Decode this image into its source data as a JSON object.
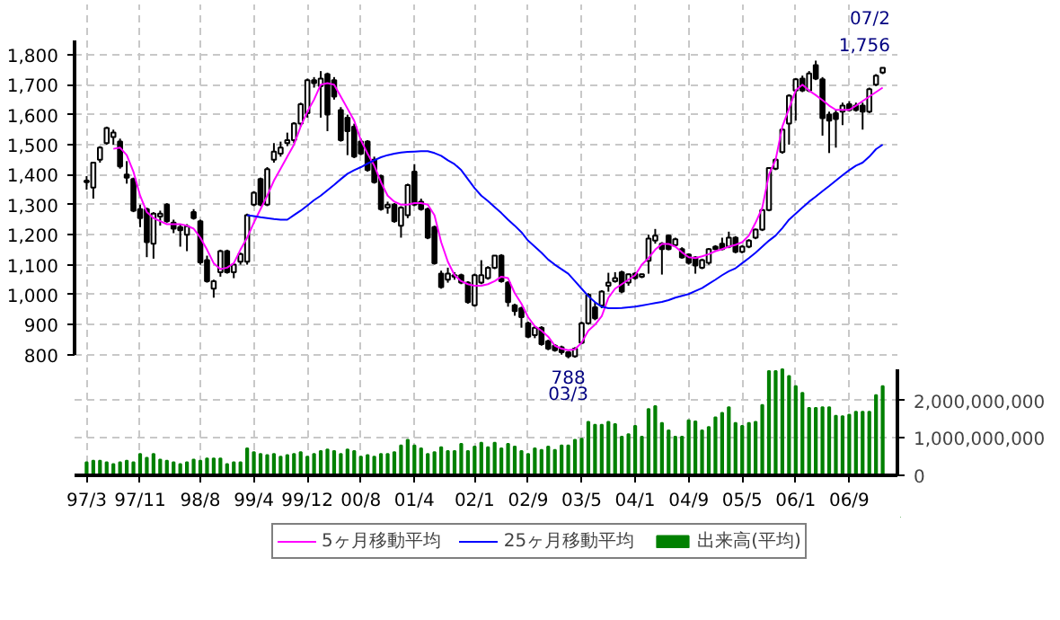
{
  "chart_data": {
    "type": "candlestick",
    "categories": [
      "97/3",
      null,
      null,
      null,
      null,
      null,
      null,
      null,
      "97/11",
      null,
      null,
      null,
      null,
      null,
      null,
      null,
      null,
      "98/8",
      null,
      null,
      null,
      null,
      null,
      null,
      null,
      "99/4",
      null,
      null,
      null,
      null,
      null,
      null,
      null,
      "99/12",
      null,
      null,
      null,
      null,
      null,
      null,
      null,
      "00/8",
      null,
      null,
      null,
      null,
      null,
      null,
      null,
      "01/4",
      null,
      null,
      null,
      null,
      null,
      null,
      null,
      null,
      "02/1",
      null,
      null,
      null,
      null,
      null,
      null,
      null,
      "02/9",
      null,
      null,
      null,
      null,
      null,
      null,
      null,
      "03/5",
      null,
      null,
      null,
      null,
      null,
      null,
      null,
      "04/1",
      null,
      null,
      null,
      null,
      null,
      null,
      null,
      "04/9",
      null,
      null,
      null,
      null,
      null,
      null,
      null,
      "05/5",
      null,
      null,
      null,
      null,
      null,
      null,
      null,
      "06/1",
      null,
      null,
      null,
      null,
      null,
      null,
      null,
      "06/9",
      null,
      null,
      null,
      null,
      null
    ],
    "ohlc": [
      [
        1375,
        1395,
        1350,
        1380
      ],
      [
        1357,
        1440,
        1320,
        1440
      ],
      [
        1450,
        1495,
        1440,
        1490
      ],
      [
        1505,
        1560,
        1500,
        1555
      ],
      [
        1525,
        1550,
        1500,
        1540
      ],
      [
        1510,
        1520,
        1420,
        1427
      ],
      [
        1400,
        1445,
        1370,
        1390
      ],
      [
        1385,
        1390,
        1275,
        1280
      ],
      [
        1285,
        1300,
        1225,
        1255
      ],
      [
        1285,
        1290,
        1125,
        1175
      ],
      [
        1170,
        1275,
        1120,
        1270
      ],
      [
        1260,
        1280,
        1230,
        1270
      ],
      [
        1300,
        1305,
        1240,
        1245
      ],
      [
        1240,
        1250,
        1205,
        1220
      ],
      [
        1225,
        1235,
        1160,
        1215
      ],
      [
        1200,
        1235,
        1145,
        1228
      ],
      [
        1275,
        1285,
        1250,
        1255
      ],
      [
        1245,
        1250,
        1100,
        1108
      ],
      [
        1115,
        1130,
        1040,
        1045
      ],
      [
        1020,
        1050,
        990,
        1045
      ],
      [
        1075,
        1150,
        1060,
        1145
      ],
      [
        1145,
        1150,
        1070,
        1075
      ],
      [
        1075,
        1105,
        1055,
        1100
      ],
      [
        1110,
        1140,
        1100,
        1135
      ],
      [
        1110,
        1270,
        1100,
        1265
      ],
      [
        1300,
        1345,
        1295,
        1340
      ],
      [
        1385,
        1390,
        1295,
        1300
      ],
      [
        1300,
        1425,
        1295,
        1418
      ],
      [
        1450,
        1505,
        1440,
        1477
      ],
      [
        1470,
        1510,
        1460,
        1490
      ],
      [
        1505,
        1540,
        1495,
        1515
      ],
      [
        1515,
        1575,
        1505,
        1570
      ],
      [
        1570,
        1640,
        1560,
        1635
      ],
      [
        1605,
        1720,
        1590,
        1715
      ],
      [
        1715,
        1725,
        1690,
        1705
      ],
      [
        1695,
        1745,
        1590,
        1720
      ],
      [
        1735,
        1740,
        1545,
        1600
      ],
      [
        1715,
        1725,
        1650,
        1660
      ],
      [
        1615,
        1625,
        1510,
        1515
      ],
      [
        1590,
        1600,
        1465,
        1545
      ],
      [
        1560,
        1570,
        1455,
        1460
      ],
      [
        1510,
        1520,
        1465,
        1470
      ],
      [
        1510,
        1515,
        1410,
        1415
      ],
      [
        1450,
        1460,
        1370,
        1375
      ],
      [
        1395,
        1400,
        1280,
        1285
      ],
      [
        1290,
        1310,
        1270,
        1300
      ],
      [
        1300,
        1305,
        1240,
        1245
      ],
      [
        1230,
        1295,
        1190,
        1290
      ],
      [
        1265,
        1370,
        1255,
        1365
      ],
      [
        1410,
        1435,
        1295,
        1300
      ],
      [
        1310,
        1320,
        1280,
        1285
      ],
      [
        1285,
        1290,
        1185,
        1190
      ],
      [
        1225,
        1230,
        1100,
        1105
      ],
      [
        1070,
        1080,
        1020,
        1025
      ],
      [
        1050,
        1090,
        1040,
        1070
      ],
      [
        1060,
        1075,
        1050,
        1065
      ],
      [
        1065,
        1070,
        1035,
        1040
      ],
      [
        1040,
        1045,
        970,
        975
      ],
      [
        965,
        1070,
        960,
        1065
      ],
      [
        1040,
        1115,
        1035,
        1065
      ],
      [
        1055,
        1095,
        1050,
        1090
      ],
      [
        1090,
        1130,
        1085,
        1130
      ],
      [
        1130,
        1135,
        1040,
        1045
      ],
      [
        1040,
        1045,
        960,
        975
      ],
      [
        965,
        970,
        930,
        945
      ],
      [
        955,
        960,
        890,
        925
      ],
      [
        905,
        910,
        855,
        860
      ],
      [
        865,
        895,
        855,
        890
      ],
      [
        890,
        895,
        830,
        835
      ],
      [
        845,
        850,
        815,
        820
      ],
      [
        830,
        835,
        810,
        815
      ],
      [
        825,
        830,
        800,
        808
      ],
      [
        808,
        812,
        788,
        795
      ],
      [
        795,
        825,
        790,
        820
      ],
      [
        840,
        910,
        835,
        905
      ],
      [
        905,
        1005,
        900,
        1000
      ],
      [
        958,
        975,
        915,
        921
      ],
      [
        964,
        1015,
        955,
        1010
      ],
      [
        1030,
        1073,
        1010,
        1040
      ],
      [
        1045,
        1075,
        1040,
        1055
      ],
      [
        1075,
        1080,
        1005,
        1010
      ],
      [
        1040,
        1070,
        1030,
        1068
      ],
      [
        1070,
        1075,
        1050,
        1055
      ],
      [
        1060,
        1070,
        1055,
        1068
      ],
      [
        1113,
        1200,
        1070,
        1187
      ],
      [
        1180,
        1219,
        1170,
        1197
      ],
      [
        1170,
        1175,
        1067,
        1152
      ],
      [
        1197,
        1200,
        1148,
        1152
      ],
      [
        1165,
        1190,
        1160,
        1185
      ],
      [
        1152,
        1158,
        1120,
        1124
      ],
      [
        1134,
        1138,
        1100,
        1106
      ],
      [
        1124,
        1128,
        1070,
        1097
      ],
      [
        1090,
        1120,
        1085,
        1115
      ],
      [
        1106,
        1155,
        1100,
        1152
      ],
      [
        1160,
        1165,
        1148,
        1152
      ],
      [
        1170,
        1190,
        1148,
        1152
      ],
      [
        1160,
        1210,
        1155,
        1190
      ],
      [
        1190,
        1195,
        1138,
        1143
      ],
      [
        1143,
        1165,
        1138,
        1160
      ],
      [
        1160,
        1185,
        1155,
        1180
      ],
      [
        1190,
        1220,
        1185,
        1217
      ],
      [
        1217,
        1285,
        1212,
        1282
      ],
      [
        1282,
        1425,
        1278,
        1422
      ],
      [
        1420,
        1455,
        1415,
        1450
      ],
      [
        1475,
        1555,
        1470,
        1550
      ],
      [
        1570,
        1668,
        1500,
        1663
      ],
      [
        1680,
        1722,
        1580,
        1718
      ],
      [
        1720,
        1730,
        1675,
        1680
      ],
      [
        1680,
        1745,
        1675,
        1737
      ],
      [
        1765,
        1780,
        1715,
        1720
      ],
      [
        1718,
        1725,
        1530,
        1588
      ],
      [
        1600,
        1610,
        1472,
        1580
      ],
      [
        1605,
        1615,
        1490,
        1585
      ],
      [
        1610,
        1640,
        1565,
        1630
      ],
      [
        1635,
        1645,
        1610,
        1615
      ],
      [
        1630,
        1640,
        1610,
        1615
      ],
      [
        1630,
        1640,
        1550,
        1610
      ],
      [
        1610,
        1690,
        1605,
        1685
      ],
      [
        1700,
        1735,
        1695,
        1730
      ],
      [
        1740,
        1756,
        1735,
        1756
      ]
    ],
    "series": [
      {
        "name": "5ヶ月移動平均",
        "type": "line",
        "color": "#ff00ff",
        "values": [
          null,
          null,
          null,
          null,
          1486,
          1490,
          1465,
          1410,
          1330,
          1275,
          1255,
          1245,
          1235,
          1235,
          1235,
          1230,
          1220,
          1190,
          1150,
          1105,
          1085,
          1090,
          1105,
          1150,
          1190,
          1240,
          1285,
          1330,
          1380,
          1420,
          1460,
          1500,
          1560,
          1610,
          1650,
          1700,
          1705,
          1700,
          1660,
          1620,
          1580,
          1515,
          1470,
          1430,
          1375,
          1330,
          1310,
          1300,
          1300,
          1305,
          1305,
          1300,
          1265,
          1175,
          1110,
          1065,
          1045,
          1035,
          1030,
          1030,
          1035,
          1045,
          1060,
          1055,
          1005,
          970,
          925,
          895,
          880,
          860,
          830,
          820,
          815,
          818,
          840,
          880,
          900,
          928,
          990,
          1020,
          1035,
          1050,
          1065,
          1100,
          1122,
          1150,
          1169,
          1169,
          1160,
          1141,
          1125,
          1122,
          1128,
          1135,
          1145,
          1152,
          1160,
          1166,
          1175,
          1197,
          1240,
          1290,
          1400,
          1450,
          1560,
          1620,
          1681,
          1700,
          1680,
          1665,
          1648,
          1630,
          1616,
          1616,
          1616,
          1630,
          1645,
          1660,
          1675,
          1690
        ]
      },
      {
        "name": "25ヶ月移動平均",
        "type": "line",
        "color": "#0000ff",
        "values": [
          null,
          null,
          null,
          null,
          null,
          null,
          null,
          null,
          null,
          null,
          null,
          null,
          null,
          null,
          null,
          null,
          null,
          null,
          null,
          null,
          null,
          null,
          null,
          null,
          1265,
          1262,
          1258,
          1255,
          1252,
          1250,
          1250,
          1265,
          1280,
          1297,
          1315,
          1330,
          1348,
          1366,
          1385,
          1403,
          1415,
          1425,
          1437,
          1448,
          1458,
          1465,
          1470,
          1474,
          1476,
          1477,
          1478,
          1478,
          1472,
          1463,
          1448,
          1435,
          1415,
          1385,
          1355,
          1330,
          1312,
          1292,
          1272,
          1250,
          1230,
          1208,
          1180,
          1160,
          1140,
          1117,
          1100,
          1085,
          1070,
          1045,
          1020,
          995,
          975,
          960,
          955,
          955,
          956,
          958,
          960,
          964,
          968,
          972,
          976,
          982,
          990,
          996,
          1002,
          1012,
          1022,
          1036,
          1050,
          1065,
          1078,
          1088,
          1105,
          1122,
          1140,
          1160,
          1180,
          1197,
          1222,
          1250,
          1270,
          1290,
          1310,
          1327,
          1345,
          1362,
          1380,
          1398,
          1415,
          1430,
          1440,
          1460,
          1485,
          1500
        ]
      },
      {
        "name": "出来高(平均)",
        "type": "bar",
        "axis": "y2",
        "color": "#008000",
        "values": [
          350000000,
          390000000,
          390000000,
          350000000,
          300000000,
          350000000,
          390000000,
          350000000,
          570000000,
          470000000,
          570000000,
          420000000,
          390000000,
          350000000,
          300000000,
          350000000,
          420000000,
          390000000,
          450000000,
          450000000,
          450000000,
          300000000,
          350000000,
          350000000,
          720000000,
          620000000,
          570000000,
          540000000,
          570000000,
          500000000,
          540000000,
          570000000,
          620000000,
          500000000,
          570000000,
          650000000,
          690000000,
          650000000,
          570000000,
          690000000,
          650000000,
          500000000,
          540000000,
          500000000,
          570000000,
          570000000,
          620000000,
          800000000,
          950000000,
          800000000,
          720000000,
          570000000,
          620000000,
          750000000,
          650000000,
          650000000,
          840000000,
          650000000,
          770000000,
          870000000,
          750000000,
          870000000,
          720000000,
          840000000,
          770000000,
          650000000,
          570000000,
          720000000,
          680000000,
          770000000,
          680000000,
          800000000,
          800000000,
          950000000,
          980000000,
          1430000000,
          1350000000,
          1350000000,
          1430000000,
          1370000000,
          1030000000,
          1100000000,
          1320000000,
          1030000000,
          1770000000,
          1850000000,
          1400000000,
          1200000000,
          1030000000,
          1030000000,
          1470000000,
          1440000000,
          1200000000,
          1290000000,
          1550000000,
          1670000000,
          1820000000,
          1400000000,
          1320000000,
          1400000000,
          1430000000,
          1880000000,
          2780000000,
          2780000000,
          2830000000,
          2650000000,
          2380000000,
          2200000000,
          1800000000,
          1800000000,
          1820000000,
          1820000000,
          1590000000,
          1580000000,
          1620000000,
          1700000000,
          1700000000,
          1700000000,
          2140000000,
          2380000000
        ]
      }
    ],
    "ylim": [
      398,
      1967
    ],
    "yticks": [
      800,
      900,
      {
        "value": 1000,
        "label": "1,000"
      },
      {
        "value": 1100,
        "label": "1,100"
      },
      {
        "value": 1200,
        "label": "1,200"
      },
      {
        "value": 1300,
        "label": "1,300"
      },
      {
        "value": 1400,
        "label": "1,400"
      },
      {
        "value": 1500,
        "label": "1,500"
      },
      {
        "value": 1600,
        "label": "1,600"
      },
      {
        "value": 1700,
        "label": "1,700"
      },
      {
        "value": 1800,
        "label": "1,800"
      }
    ],
    "y2lim": [
      0,
      12570000000
    ],
    "y2ticks": [
      0,
      {
        "value": 1000000000,
        "label": "1,000,000,000"
      },
      {
        "value": 2000000000,
        "label": "2,000,000,000"
      }
    ],
    "annotations": [
      {
        "text": "788",
        "y": 788
      },
      {
        "text": "03/3",
        "y": 788
      },
      "07/2",
      "1,756"
    ],
    "grid": true,
    "legend": "bottom"
  }
}
